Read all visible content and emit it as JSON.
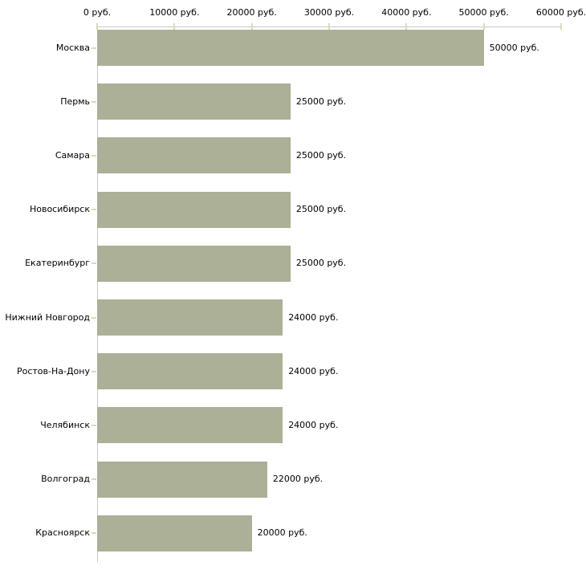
{
  "chart_data": {
    "type": "bar",
    "orientation": "horizontal",
    "title": "",
    "xlabel": "",
    "ylabel": "",
    "categories": [
      "Москва",
      "Пермь",
      "Самара",
      "Новосибирск",
      "Екатеринбург",
      "Нижний Новгород",
      "Ростов-На-Дону",
      "Челябинск",
      "Волгоград",
      "Красноярск"
    ],
    "values": [
      50000,
      25000,
      25000,
      25000,
      25000,
      24000,
      24000,
      24000,
      22000,
      20000
    ],
    "value_labels": [
      "50000 руб.",
      "25000 руб.",
      "25000 руб.",
      "25000 руб.",
      "25000 руб.",
      "24000 руб.",
      "24000 руб.",
      "24000 руб.",
      "22000 руб.",
      "20000 руб."
    ],
    "x_ticks": [
      0,
      10000,
      20000,
      30000,
      40000,
      50000,
      60000
    ],
    "x_tick_labels": [
      "0 руб.",
      "10000 руб.",
      "20000 руб.",
      "30000 руб.",
      "40000 руб.",
      "50000 руб.",
      "60000 руб."
    ],
    "xlim": [
      0,
      60000
    ],
    "grid": false,
    "legend": "none",
    "colors": {
      "bar": "#abb096",
      "axis_line": "#c9c9c9",
      "tick_mark": "#d8dbb8",
      "text": "#000000",
      "background": "#ffffff"
    }
  }
}
